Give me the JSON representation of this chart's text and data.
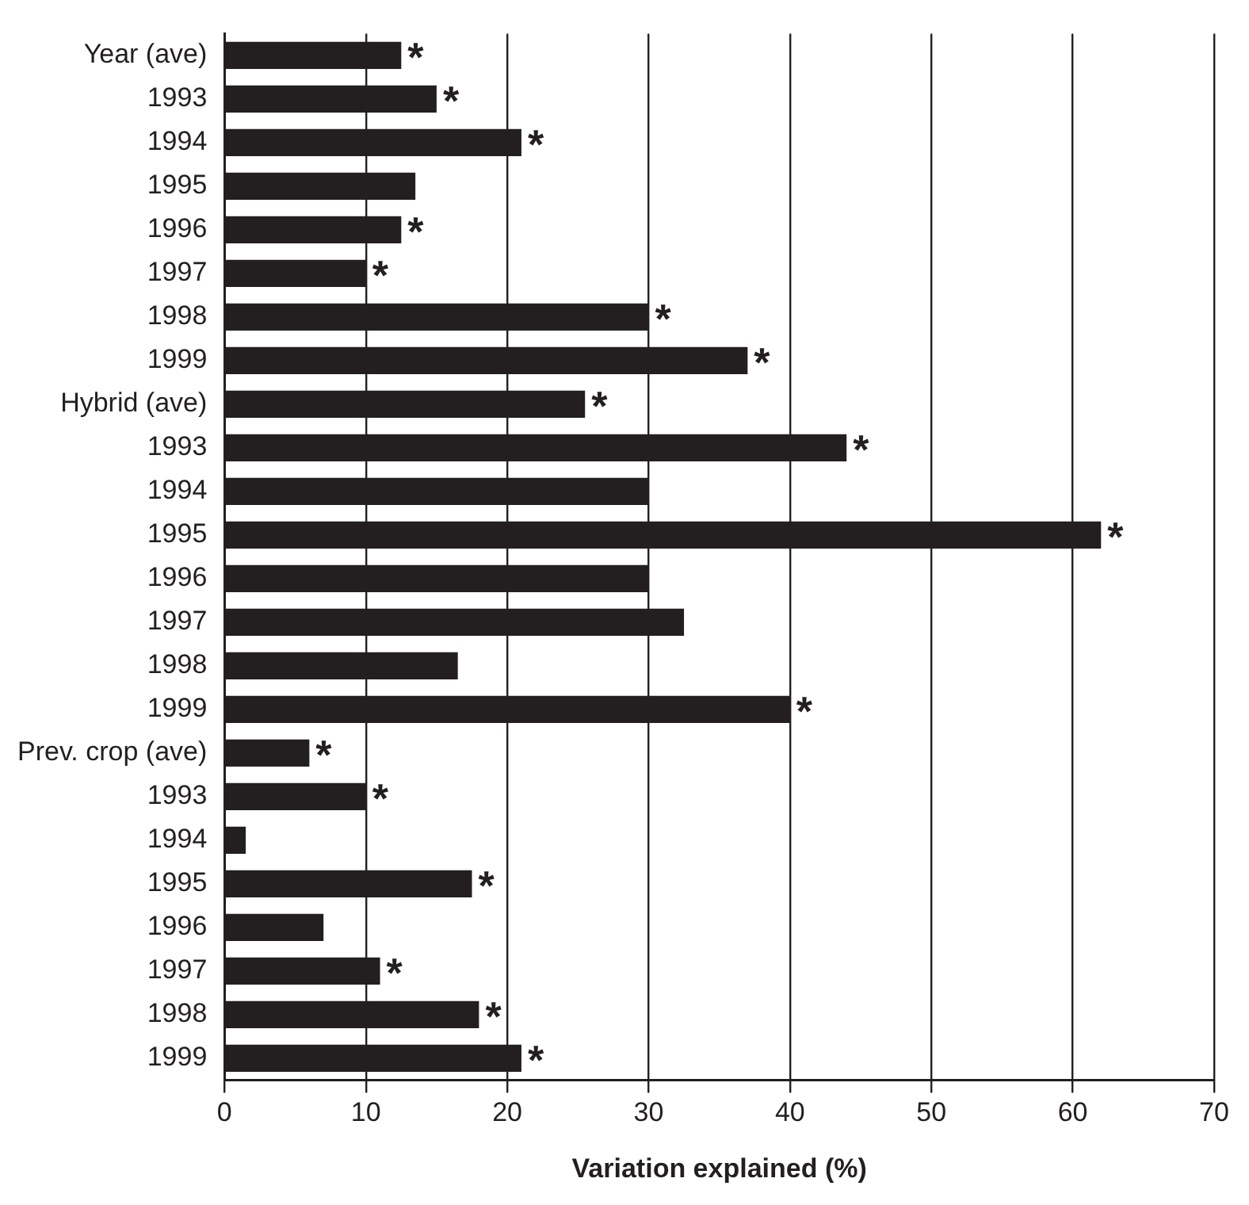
{
  "chart_data": {
    "type": "bar",
    "orientation": "horizontal",
    "xlabel": "Variation explained (%)",
    "categories": [
      "Year (ave)",
      "1993",
      "1994",
      "1995",
      "1996",
      "1997",
      "1998",
      "1999",
      "Hybrid (ave)",
      "1993",
      "1994",
      "1995",
      "1996",
      "1997",
      "1998",
      "1999",
      "Prev. crop (ave)",
      "1993",
      "1994",
      "1995",
      "1996",
      "1997",
      "1998",
      "1999"
    ],
    "values": [
      12.5,
      15,
      21,
      13.5,
      12.5,
      10,
      30,
      37,
      25.5,
      44,
      30,
      62,
      30,
      32.5,
      16.5,
      40,
      6,
      10,
      1.5,
      17.5,
      7,
      11,
      18,
      21
    ],
    "value_labels": [
      "*",
      "*",
      "*",
      null,
      "*",
      "*",
      "*",
      "*",
      "*",
      "*",
      null,
      "*",
      null,
      null,
      null,
      "*",
      "*",
      "*",
      null,
      "*",
      null,
      "*",
      "*",
      "*"
    ],
    "color": "#231f20",
    "xlim": [
      0,
      70
    ],
    "xticks": [
      0,
      10,
      20,
      30,
      40,
      50,
      60,
      70
    ],
    "grid": "x",
    "legend": false
  }
}
